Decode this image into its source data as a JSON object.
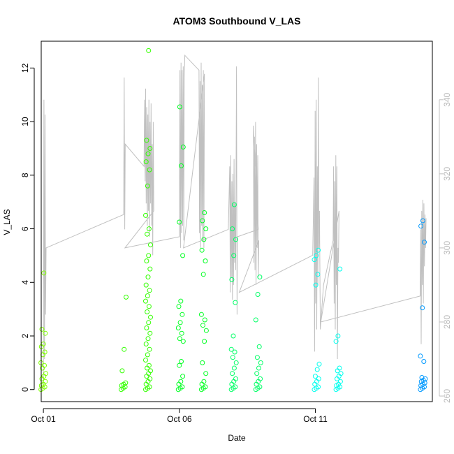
{
  "chart_data": {
    "type": "scatter",
    "title": "ATOM3 Southbound V_LAS",
    "xlabel": "Date",
    "ylabel": "V_LAS",
    "x_ticks": [
      "Oct 01",
      "Oct 06",
      "Oct 11"
    ],
    "x_tick_days": [
      1,
      6,
      11
    ],
    "xlim": [
      0.92,
      15.3
    ],
    "ylim": [
      -0.45,
      13.0
    ],
    "y_ticks": [
      0,
      2,
      4,
      6,
      8,
      10,
      12
    ],
    "secondary_axis": {
      "color": "#c0c0c0",
      "ylim": [
        258.5,
        355.8
      ],
      "ticks": [
        260,
        280,
        300,
        320,
        340
      ]
    },
    "grid": false,
    "legend": "none",
    "points_series": [
      {
        "color": "#7FFF00",
        "clusters": [
          {
            "day": 1.0,
            "values": [
              0.0,
              0.05,
              0.1,
              0.15,
              0.2,
              0.3,
              0.4,
              0.5,
              0.6,
              0.8,
              0.9,
              1.0,
              1.3,
              1.4,
              1.6,
              1.7,
              2.1,
              2.25,
              4.35
            ]
          }
        ]
      },
      {
        "color": "#33FF00",
        "clusters": [
          {
            "day": 3.95,
            "values": [
              0.0,
              0.05,
              0.1,
              0.15,
              0.2,
              0.25,
              0.7,
              1.5,
              3.45
            ]
          },
          {
            "day": 4.85,
            "values": [
              0.0,
              0.05,
              0.1,
              0.2,
              0.3,
              0.4,
              0.5,
              0.6,
              0.7,
              0.8,
              0.9,
              1.1,
              1.3,
              1.5,
              1.7,
              1.9,
              2.1,
              2.3,
              2.5,
              2.7,
              2.9,
              3.1,
              3.3,
              3.5,
              3.7,
              3.9,
              4.2,
              4.5,
              4.8,
              5.0,
              5.4,
              5.8,
              6.0,
              6.5,
              7.6,
              8.2,
              8.5,
              8.8,
              9.0,
              9.3,
              12.65
            ]
          }
        ]
      },
      {
        "color": "#00FF22",
        "clusters": [
          {
            "day": 6.05,
            "values": [
              0.0,
              0.05,
              0.1,
              0.2,
              0.3,
              0.5,
              0.9,
              1.05,
              1.8,
              1.9,
              2.1,
              2.3,
              2.5,
              2.8,
              3.1,
              3.3,
              5.0,
              6.25,
              8.35,
              9.05,
              10.55
            ]
          },
          {
            "day": 6.9,
            "values": [
              0.0,
              0.05,
              0.1,
              0.2,
              0.3,
              0.6,
              1.0,
              1.8,
              2.2,
              2.4,
              2.6,
              2.8,
              4.3,
              4.8,
              5.2,
              5.6,
              6.0,
              6.3,
              6.6
            ]
          }
        ]
      },
      {
        "color": "#00FF66",
        "clusters": [
          {
            "day": 8.0,
            "values": [
              0.0,
              0.05,
              0.1,
              0.2,
              0.3,
              0.4,
              0.6,
              0.8,
              1.0,
              1.2,
              1.4,
              1.5,
              2.0,
              3.25,
              4.1,
              5.0,
              5.6,
              6.0,
              6.9
            ]
          },
          {
            "day": 8.9,
            "values": [
              0.0,
              0.05,
              0.1,
              0.2,
              0.3,
              0.4,
              0.6,
              0.8,
              1.0,
              1.2,
              1.6,
              2.6,
              3.55,
              4.2
            ]
          }
        ]
      },
      {
        "color": "#00FFEE",
        "clusters": [
          {
            "day": 11.05,
            "values": [
              0.0,
              0.05,
              0.1,
              0.2,
              0.3,
              0.4,
              0.5,
              0.75,
              0.95,
              3.9,
              4.3,
              4.85,
              5.0,
              5.2
            ]
          },
          {
            "day": 11.85,
            "values": [
              0.0,
              0.05,
              0.1,
              0.15,
              0.2,
              0.3,
              0.4,
              0.5,
              0.6,
              0.7,
              0.8,
              1.8,
              2.0,
              4.5
            ]
          }
        ]
      },
      {
        "color": "#0099FF",
        "clusters": [
          {
            "day": 14.95,
            "values": [
              0.0,
              0.05,
              0.1,
              0.15,
              0.2,
              0.25,
              0.3,
              0.35,
              0.4,
              0.45,
              1.05,
              1.25,
              3.05,
              5.5,
              6.1,
              6.3
            ]
          }
        ]
      }
    ],
    "line_series": [
      {
        "color": "#c0c0c0",
        "axis": "secondary",
        "points": [
          [
            1.0,
            262
          ],
          [
            1.02,
            340
          ],
          [
            1.04,
            270
          ],
          [
            1.06,
            336
          ],
          [
            1.08,
            282
          ],
          [
            1.1,
            300
          ],
          [
            3.95,
            309
          ],
          [
            3.97,
            346
          ],
          [
            3.99,
            305
          ],
          [
            4.01,
            328
          ],
          [
            4.7,
            322
          ],
          [
            4.72,
            340
          ],
          [
            4.74,
            318
          ],
          [
            4.76,
            343
          ],
          [
            4.78,
            312
          ],
          [
            4.8,
            338
          ],
          [
            4.82,
            306
          ],
          [
            4.84,
            336
          ],
          [
            4.86,
            310
          ],
          [
            4.88,
            340
          ],
          [
            4.9,
            303
          ],
          [
            4.92,
            334
          ],
          [
            4.94,
            312
          ],
          [
            4.96,
            339
          ],
          [
            4.98,
            306
          ],
          [
            5.0,
            328
          ],
          [
            5.02,
            298
          ],
          [
            5.04,
            334
          ],
          [
            5.06,
            310
          ],
          [
            4.0,
            300
          ],
          [
            6.0,
            303
          ],
          [
            6.02,
            348
          ],
          [
            6.04,
            300
          ],
          [
            6.06,
            350
          ],
          [
            6.08,
            304
          ],
          [
            6.1,
            348
          ],
          [
            6.12,
            306
          ],
          [
            6.14,
            349
          ],
          [
            6.16,
            302
          ],
          [
            6.18,
            346
          ],
          [
            6.2,
            352
          ],
          [
            6.72,
            348
          ],
          [
            6.74,
            304
          ],
          [
            6.76,
            345
          ],
          [
            6.78,
            300
          ],
          [
            6.8,
            350
          ],
          [
            6.82,
            306
          ],
          [
            6.84,
            344
          ],
          [
            6.86,
            302
          ],
          [
            6.88,
            348
          ],
          [
            6.9,
            300
          ],
          [
            6.92,
            347
          ],
          [
            6.15,
            300
          ],
          [
            7.8,
            305
          ],
          [
            7.85,
            322
          ],
          [
            7.87,
            288
          ],
          [
            7.89,
            325
          ],
          [
            7.91,
            292
          ],
          [
            7.93,
            318
          ],
          [
            7.95,
            286
          ],
          [
            7.97,
            320
          ],
          [
            7.99,
            290
          ],
          [
            8.01,
            324
          ],
          [
            8.03,
            296
          ],
          [
            8.05,
            312
          ],
          [
            8.07,
            294
          ],
          [
            8.1,
            349
          ],
          [
            8.12,
            282
          ],
          [
            8.13,
            303
          ],
          [
            8.9,
            305
          ],
          [
            8.72,
            333
          ],
          [
            8.74,
            296
          ],
          [
            8.76,
            330
          ],
          [
            8.78,
            294
          ],
          [
            8.8,
            334
          ],
          [
            8.82,
            290
          ],
          [
            8.84,
            328
          ],
          [
            8.86,
            300
          ],
          [
            8.88,
            325
          ],
          [
            8.9,
            292
          ],
          [
            8.92,
            302
          ],
          [
            8.2,
            288
          ],
          [
            10.9,
            298
          ],
          [
            10.95,
            319
          ],
          [
            10.97,
            272
          ],
          [
            10.99,
            337
          ],
          [
            11.01,
            285
          ],
          [
            11.03,
            340
          ],
          [
            11.05,
            278
          ],
          [
            11.07,
            322
          ],
          [
            11.09,
            290
          ],
          [
            11.11,
            346
          ],
          [
            11.13,
            300
          ],
          [
            11.15,
            310
          ],
          [
            11.18,
            278
          ],
          [
            11.3,
            290
          ],
          [
            11.65,
            302
          ],
          [
            11.67,
            322
          ],
          [
            11.69,
            285
          ],
          [
            11.71,
            318
          ],
          [
            11.73,
            278
          ],
          [
            11.75,
            325
          ],
          [
            11.77,
            290
          ],
          [
            11.79,
            322
          ],
          [
            11.81,
            270
          ],
          [
            11.83,
            300
          ],
          [
            11.85,
            296
          ],
          [
            11.87,
            310
          ],
          [
            11.2,
            280
          ],
          [
            14.85,
            287
          ],
          [
            14.87,
            305
          ],
          [
            14.89,
            274
          ],
          [
            14.91,
            310
          ],
          [
            14.93,
            290
          ],
          [
            14.95,
            313
          ],
          [
            14.97,
            285
          ],
          [
            14.99,
            312
          ],
          [
            15.01,
            295
          ],
          [
            15.03,
            309
          ],
          [
            15.05,
            300
          ],
          [
            15.07,
            308
          ]
        ]
      }
    ]
  }
}
